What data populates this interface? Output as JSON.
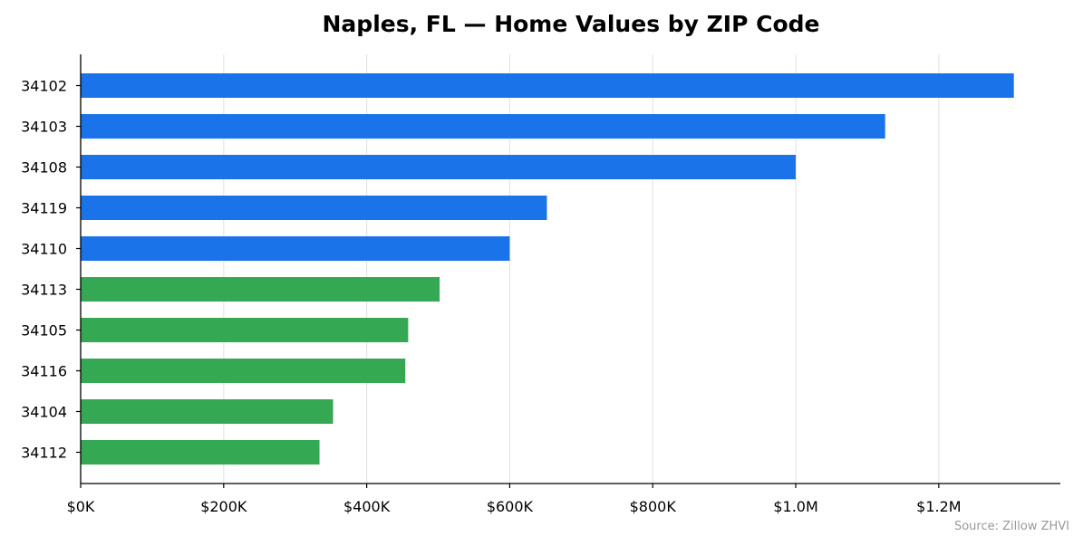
{
  "chart_data": {
    "type": "bar",
    "orientation": "horizontal",
    "title": "Naples, FL — Home Values by ZIP Code",
    "xlabel": "",
    "ylabel": "",
    "categories": [
      "34102",
      "34103",
      "34108",
      "34119",
      "34110",
      "34113",
      "34105",
      "34116",
      "34104",
      "34112"
    ],
    "values": [
      1305000,
      1125000,
      1000000,
      652000,
      600000,
      502000,
      458000,
      454000,
      353000,
      334000
    ],
    "xlim": [
      0,
      1370000
    ],
    "xticks": [
      {
        "value": 0,
        "label": "$0K"
      },
      {
        "value": 200000,
        "label": "$200K"
      },
      {
        "value": 400000,
        "label": "$400K"
      },
      {
        "value": 600000,
        "label": "$600K"
      },
      {
        "value": 800000,
        "label": "$800K"
      },
      {
        "value": 1000000,
        "label": "$1.0M"
      },
      {
        "value": 1200000,
        "label": "$1.2M"
      }
    ],
    "grid": "vertical",
    "colors": {
      "high": "#1a73e8",
      "low": "#34a853",
      "grid": "#e6e6e6",
      "axis": "#000000"
    },
    "bar_colors": [
      "#1a73e8",
      "#1a73e8",
      "#1a73e8",
      "#1a73e8",
      "#1a73e8",
      "#34a853",
      "#34a853",
      "#34a853",
      "#34a853",
      "#34a853"
    ],
    "source_note": "Source: Zillow ZHVI"
  }
}
